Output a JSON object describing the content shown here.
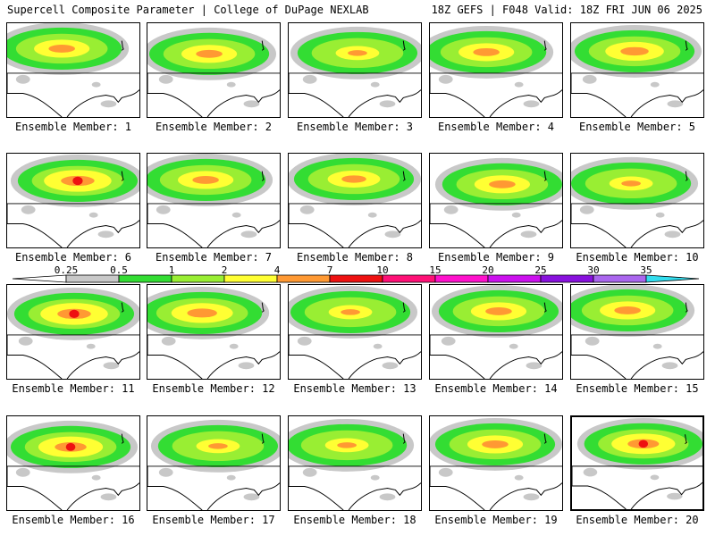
{
  "header": {
    "left": "Supercell Composite Parameter | College of DuPage NEXLAB",
    "right": "18Z GEFS | F048 Valid: 18Z FRI JUN 06 2025"
  },
  "member_prefix": "Ensemble Member: ",
  "members": [
    {
      "id": "1",
      "intensity": 0.75,
      "selected": false
    },
    {
      "id": "2",
      "intensity": 0.75,
      "selected": false
    },
    {
      "id": "3",
      "intensity": 0.55,
      "selected": false
    },
    {
      "id": "4",
      "intensity": 0.75,
      "selected": false
    },
    {
      "id": "5",
      "intensity": 0.8,
      "selected": false
    },
    {
      "id": "6",
      "intensity": 0.95,
      "selected": false
    },
    {
      "id": "7",
      "intensity": 0.75,
      "selected": false
    },
    {
      "id": "8",
      "intensity": 0.7,
      "selected": false
    },
    {
      "id": "9",
      "intensity": 0.75,
      "selected": false
    },
    {
      "id": "10",
      "intensity": 0.55,
      "selected": false
    },
    {
      "id": "11",
      "intensity": 0.95,
      "selected": false
    },
    {
      "id": "12",
      "intensity": 0.85,
      "selected": false
    },
    {
      "id": "13",
      "intensity": 0.55,
      "selected": false
    },
    {
      "id": "14",
      "intensity": 0.75,
      "selected": false
    },
    {
      "id": "15",
      "intensity": 0.75,
      "selected": false
    },
    {
      "id": "16",
      "intensity": 0.9,
      "selected": false
    },
    {
      "id": "17",
      "intensity": 0.55,
      "selected": false
    },
    {
      "id": "18",
      "intensity": 0.55,
      "selected": false
    },
    {
      "id": "19",
      "intensity": 0.75,
      "selected": false
    },
    {
      "id": "20",
      "intensity": 0.9,
      "selected": true
    }
  ],
  "colorbar": {
    "labels": [
      "0.25",
      "0.5",
      "1",
      "2",
      "4",
      "7",
      "10",
      "15",
      "20",
      "25",
      "30",
      "35"
    ],
    "colors": [
      "#c8c8c8",
      "#33dd33",
      "#99ee33",
      "#ffff33",
      "#ff9933",
      "#ee1111",
      "#ff1177",
      "#ff11cc",
      "#cc11ee",
      "#8811dd",
      "#aa66ee",
      "#33ddee"
    ]
  },
  "colors": {
    "lt0.25": "#ffffff",
    "0.25": "#c8c8c8",
    "0.5": "#33dd33",
    "1": "#99ee33",
    "2": "#ffff33",
    "4": "#ff9933",
    "7": "#ee1111",
    "coast": "#000000",
    "border": "#000000"
  }
}
